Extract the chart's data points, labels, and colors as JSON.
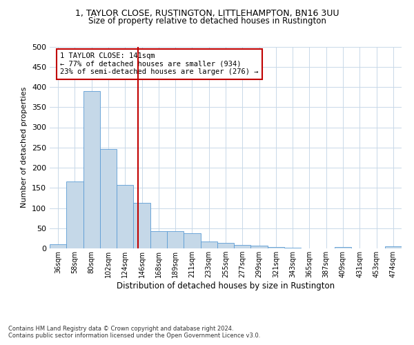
{
  "title1": "1, TAYLOR CLOSE, RUSTINGTON, LITTLEHAMPTON, BN16 3UU",
  "title2": "Size of property relative to detached houses in Rustington",
  "xlabel": "Distribution of detached houses by size in Rustington",
  "ylabel": "Number of detached properties",
  "categories": [
    "36sqm",
    "58sqm",
    "80sqm",
    "102sqm",
    "124sqm",
    "146sqm",
    "168sqm",
    "189sqm",
    "211sqm",
    "233sqm",
    "255sqm",
    "277sqm",
    "299sqm",
    "321sqm",
    "343sqm",
    "365sqm",
    "387sqm",
    "409sqm",
    "431sqm",
    "453sqm",
    "474sqm"
  ],
  "values": [
    11,
    165,
    390,
    247,
    157,
    113,
    42,
    42,
    38,
    17,
    14,
    8,
    6,
    3,
    2,
    0,
    0,
    3,
    0,
    0,
    5
  ],
  "bar_color": "#c5d8e8",
  "bar_edge_color": "#5b9bd5",
  "vline_color": "#c00000",
  "annotation_line1": "1 TAYLOR CLOSE: 141sqm",
  "annotation_line2": "← 77% of detached houses are smaller (934)",
  "annotation_line3": "23% of semi-detached houses are larger (276) →",
  "annotation_box_color": "#c00000",
  "ylim": [
    0,
    500
  ],
  "yticks": [
    0,
    50,
    100,
    150,
    200,
    250,
    300,
    350,
    400,
    450,
    500
  ],
  "footer1": "Contains HM Land Registry data © Crown copyright and database right 2024.",
  "footer2": "Contains public sector information licensed under the Open Government Licence v3.0.",
  "bg_color": "#ffffff",
  "grid_color": "#c8d8e8"
}
